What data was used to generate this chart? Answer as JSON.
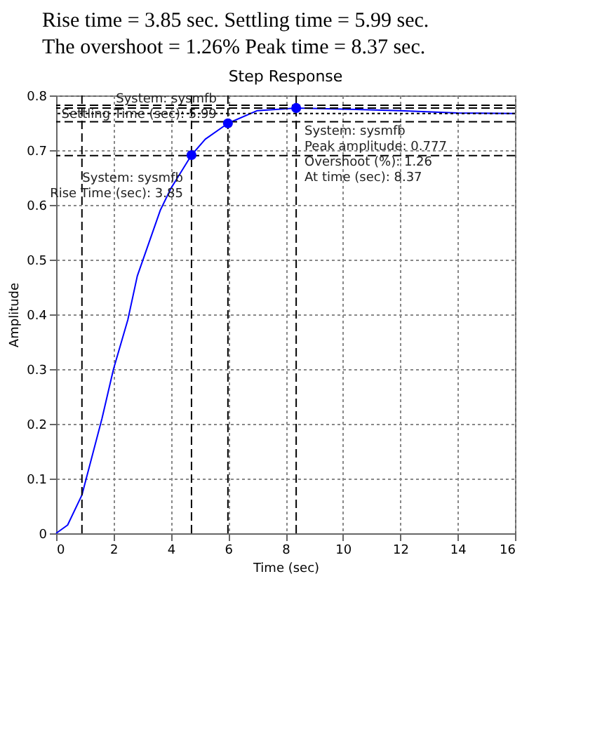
{
  "chart_data": {
    "type": "line",
    "title": "Step Response",
    "xlabel": "Time (sec)",
    "ylabel": "Amplitude",
    "x": [
      0,
      0.4,
      0.9,
      1.0,
      1.6,
      2,
      2.5,
      2.83,
      3.63,
      4,
      4.72,
      5.2,
      5.99,
      7,
      8.37,
      10,
      12,
      14,
      16
    ],
    "series": [
      {
        "color": "#0000ff",
        "values": [
          0,
          0.015,
          0.07,
          0.09,
          0.21,
          0.3,
          0.39,
          0.47,
          0.59,
          0.63,
          0.691,
          0.72,
          0.749,
          0.772,
          0.777,
          0.775,
          0.772,
          0.768,
          0.767
        ]
      }
    ],
    "xlim": [
      0,
      16
    ],
    "xticks": [
      0,
      2,
      4,
      6,
      8,
      10,
      12,
      14,
      16
    ],
    "ylim": [
      0,
      0.8
    ],
    "yticks": [
      0,
      0.1,
      0.2,
      0.3,
      0.4,
      0.5,
      0.6,
      0.7,
      0.8
    ],
    "grid": true,
    "line_style": "solid",
    "marker": "none",
    "ref_lines": [
      {
        "axis": "x",
        "value": 0.9,
        "color": "#000000",
        "line_style": "dashed"
      },
      {
        "axis": "x",
        "value": 4.72,
        "color": "#000000",
        "line_style": "dashed"
      },
      {
        "axis": "x",
        "value": 5.99,
        "color": "#000000",
        "line_style": "dashed"
      },
      {
        "axis": "x",
        "value": 8.37,
        "color": "#000000",
        "line_style": "dashed"
      },
      {
        "axis": "y",
        "value": 0.69,
        "color": "#000000",
        "line_style": "dashed"
      },
      {
        "axis": "y",
        "value": 0.752,
        "color": "#000000",
        "line_style": "dashed"
      },
      {
        "axis": "y",
        "value": 0.767,
        "color": "#000000",
        "line_style": "dotted"
      },
      {
        "axis": "y",
        "value": 0.777,
        "color": "#000000",
        "line_style": "dashed"
      },
      {
        "axis": "y",
        "value": 0.782,
        "color": "#000000",
        "line_style": "dashed"
      }
    ],
    "annotations": [
      "Rise time = 3.85 sec. Settling time = 5.99 sec.",
      "The overshoot = 1.26% Peak time = 8.37 sec.",
      {
        "text": "System: sysmfb\nRise Time (sec): 3.85",
        "x": 4.72,
        "y": 0.691
      },
      {
        "text": "System: sysmfb\nSettling Time (sec): 5.99",
        "x": 5.99,
        "y": 0.749
      },
      {
        "text": "System: sysmfb\nPeak amplitude: 0.777\nOvershoot (%): 1.26\nAt time (sec): 8.37",
        "x": 8.37,
        "y": 0.777
      }
    ]
  }
}
